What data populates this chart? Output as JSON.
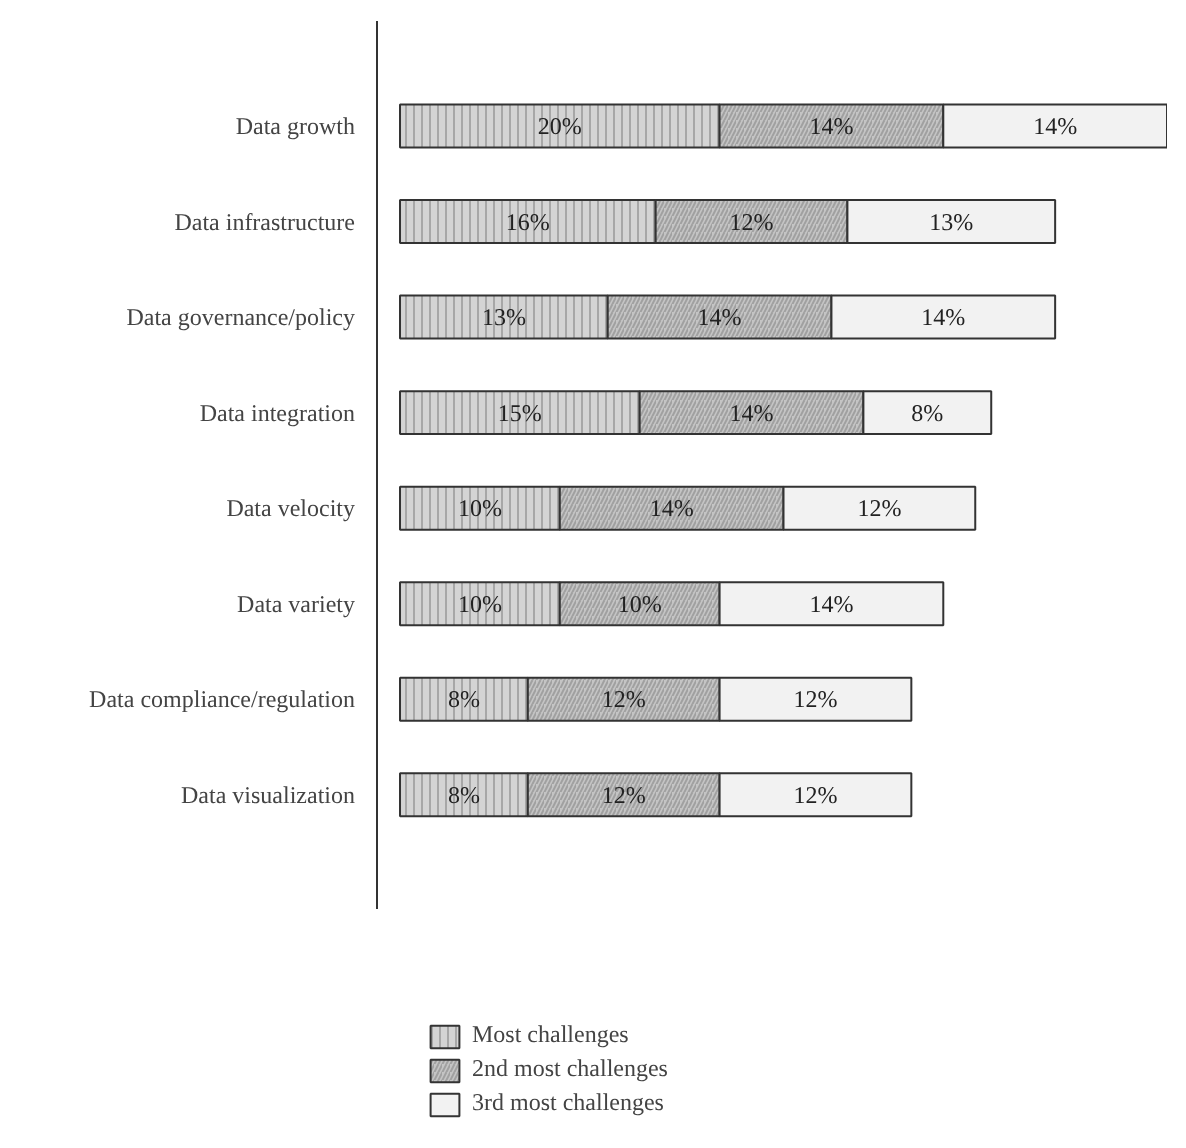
{
  "chart_data": {
    "type": "bar",
    "orientation": "horizontal",
    "stacked": true,
    "tick_labels": "y",
    "grid": false,
    "legend": "bottom",
    "categories": [
      "Data growth",
      "Data infrastructure",
      "Data governance/policy",
      "Data integration",
      "Data velocity",
      "Data variety",
      "Data compliance/regulation",
      "Data visualization"
    ],
    "series": [
      {
        "name": "Most challenges",
        "color": "#d4d4d4",
        "values": [
          20,
          16,
          13,
          15,
          10,
          10,
          8,
          8
        ],
        "value_labels": [
          "20%",
          "16%",
          "13%",
          "15%",
          "10%",
          "10%",
          "8%",
          "8%"
        ]
      },
      {
        "name": "2nd most challenges",
        "color": "#c4c4c4",
        "values": [
          14,
          12,
          14,
          14,
          14,
          10,
          12,
          12
        ],
        "value_labels": [
          "14%",
          "12%",
          "14%",
          "14%",
          "14%",
          "10%",
          "12%",
          "12%"
        ]
      },
      {
        "name": "3rd most challenges",
        "color": "#f2f2f2",
        "values": [
          14,
          13,
          14,
          8,
          12,
          14,
          12,
          12
        ],
        "value_labels": [
          "14%",
          "13%",
          "14%",
          "8%",
          "12%",
          "14%",
          "12%",
          "12%"
        ]
      }
    ]
  }
}
